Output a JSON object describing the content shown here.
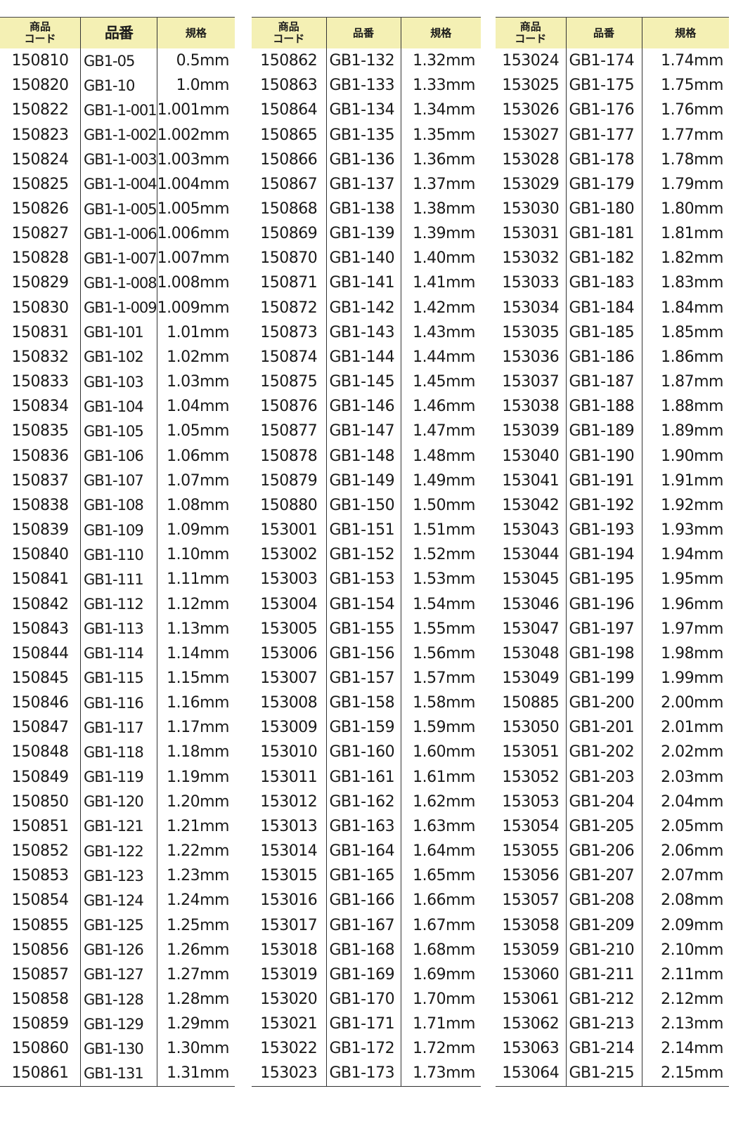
{
  "headers": {
    "code": "商品\nコード",
    "part": "品番",
    "spec": "規格"
  },
  "header_color": "#f4f0b4",
  "tables": [
    [
      [
        "150810",
        "GB1-05",
        "0.5mm"
      ],
      [
        "150820",
        "GB1-10",
        "1.0mm"
      ],
      [
        "150822",
        "GB1-1-001",
        "1.001mm"
      ],
      [
        "150823",
        "GB1-1-002",
        "1.002mm"
      ],
      [
        "150824",
        "GB1-1-003",
        "1.003mm"
      ],
      [
        "150825",
        "GB1-1-004",
        "1.004mm"
      ],
      [
        "150826",
        "GB1-1-005",
        "1.005mm"
      ],
      [
        "150827",
        "GB1-1-006",
        "1.006mm"
      ],
      [
        "150828",
        "GB1-1-007",
        "1.007mm"
      ],
      [
        "150829",
        "GB1-1-008",
        "1.008mm"
      ],
      [
        "150830",
        "GB1-1-009",
        "1.009mm"
      ],
      [
        "150831",
        "GB1-101",
        "1.01mm"
      ],
      [
        "150832",
        "GB1-102",
        "1.02mm"
      ],
      [
        "150833",
        "GB1-103",
        "1.03mm"
      ],
      [
        "150834",
        "GB1-104",
        "1.04mm"
      ],
      [
        "150835",
        "GB1-105",
        "1.05mm"
      ],
      [
        "150836",
        "GB1-106",
        "1.06mm"
      ],
      [
        "150837",
        "GB1-107",
        "1.07mm"
      ],
      [
        "150838",
        "GB1-108",
        "1.08mm"
      ],
      [
        "150839",
        "GB1-109",
        "1.09mm"
      ],
      [
        "150840",
        "GB1-110",
        "1.10mm"
      ],
      [
        "150841",
        "GB1-111",
        "1.11mm"
      ],
      [
        "150842",
        "GB1-112",
        "1.12mm"
      ],
      [
        "150843",
        "GB1-113",
        "1.13mm"
      ],
      [
        "150844",
        "GB1-114",
        "1.14mm"
      ],
      [
        "150845",
        "GB1-115",
        "1.15mm"
      ],
      [
        "150846",
        "GB1-116",
        "1.16mm"
      ],
      [
        "150847",
        "GB1-117",
        "1.17mm"
      ],
      [
        "150848",
        "GB1-118",
        "1.18mm"
      ],
      [
        "150849",
        "GB1-119",
        "1.19mm"
      ],
      [
        "150850",
        "GB1-120",
        "1.20mm"
      ],
      [
        "150851",
        "GB1-121",
        "1.21mm"
      ],
      [
        "150852",
        "GB1-122",
        "1.22mm"
      ],
      [
        "150853",
        "GB1-123",
        "1.23mm"
      ],
      [
        "150854",
        "GB1-124",
        "1.24mm"
      ],
      [
        "150855",
        "GB1-125",
        "1.25mm"
      ],
      [
        "150856",
        "GB1-126",
        "1.26mm"
      ],
      [
        "150857",
        "GB1-127",
        "1.27mm"
      ],
      [
        "150858",
        "GB1-128",
        "1.28mm"
      ],
      [
        "150859",
        "GB1-129",
        "1.29mm"
      ],
      [
        "150860",
        "GB1-130",
        "1.30mm"
      ],
      [
        "150861",
        "GB1-131",
        "1.31mm"
      ]
    ],
    [
      [
        "150862",
        "GB1-132",
        "1.32mm"
      ],
      [
        "150863",
        "GB1-133",
        "1.33mm"
      ],
      [
        "150864",
        "GB1-134",
        "1.34mm"
      ],
      [
        "150865",
        "GB1-135",
        "1.35mm"
      ],
      [
        "150866",
        "GB1-136",
        "1.36mm"
      ],
      [
        "150867",
        "GB1-137",
        "1.37mm"
      ],
      [
        "150868",
        "GB1-138",
        "1.38mm"
      ],
      [
        "150869",
        "GB1-139",
        "1.39mm"
      ],
      [
        "150870",
        "GB1-140",
        "1.40mm"
      ],
      [
        "150871",
        "GB1-141",
        "1.41mm"
      ],
      [
        "150872",
        "GB1-142",
        "1.42mm"
      ],
      [
        "150873",
        "GB1-143",
        "1.43mm"
      ],
      [
        "150874",
        "GB1-144",
        "1.44mm"
      ],
      [
        "150875",
        "GB1-145",
        "1.45mm"
      ],
      [
        "150876",
        "GB1-146",
        "1.46mm"
      ],
      [
        "150877",
        "GB1-147",
        "1.47mm"
      ],
      [
        "150878",
        "GB1-148",
        "1.48mm"
      ],
      [
        "150879",
        "GB1-149",
        "1.49mm"
      ],
      [
        "150880",
        "GB1-150",
        "1.50mm"
      ],
      [
        "153001",
        "GB1-151",
        "1.51mm"
      ],
      [
        "153002",
        "GB1-152",
        "1.52mm"
      ],
      [
        "153003",
        "GB1-153",
        "1.53mm"
      ],
      [
        "153004",
        "GB1-154",
        "1.54mm"
      ],
      [
        "153005",
        "GB1-155",
        "1.55mm"
      ],
      [
        "153006",
        "GB1-156",
        "1.56mm"
      ],
      [
        "153007",
        "GB1-157",
        "1.57mm"
      ],
      [
        "153008",
        "GB1-158",
        "1.58mm"
      ],
      [
        "153009",
        "GB1-159",
        "1.59mm"
      ],
      [
        "153010",
        "GB1-160",
        "1.60mm"
      ],
      [
        "153011",
        "GB1-161",
        "1.61mm"
      ],
      [
        "153012",
        "GB1-162",
        "1.62mm"
      ],
      [
        "153013",
        "GB1-163",
        "1.63mm"
      ],
      [
        "153014",
        "GB1-164",
        "1.64mm"
      ],
      [
        "153015",
        "GB1-165",
        "1.65mm"
      ],
      [
        "153016",
        "GB1-166",
        "1.66mm"
      ],
      [
        "153017",
        "GB1-167",
        "1.67mm"
      ],
      [
        "153018",
        "GB1-168",
        "1.68mm"
      ],
      [
        "153019",
        "GB1-169",
        "1.69mm"
      ],
      [
        "153020",
        "GB1-170",
        "1.70mm"
      ],
      [
        "153021",
        "GB1-171",
        "1.71mm"
      ],
      [
        "153022",
        "GB1-172",
        "1.72mm"
      ],
      [
        "153023",
        "GB1-173",
        "1.73mm"
      ]
    ],
    [
      [
        "153024",
        "GB1-174",
        "1.74mm"
      ],
      [
        "153025",
        "GB1-175",
        "1.75mm"
      ],
      [
        "153026",
        "GB1-176",
        "1.76mm"
      ],
      [
        "153027",
        "GB1-177",
        "1.77mm"
      ],
      [
        "153028",
        "GB1-178",
        "1.78mm"
      ],
      [
        "153029",
        "GB1-179",
        "1.79mm"
      ],
      [
        "153030",
        "GB1-180",
        "1.80mm"
      ],
      [
        "153031",
        "GB1-181",
        "1.81mm"
      ],
      [
        "153032",
        "GB1-182",
        "1.82mm"
      ],
      [
        "153033",
        "GB1-183",
        "1.83mm"
      ],
      [
        "153034",
        "GB1-184",
        "1.84mm"
      ],
      [
        "153035",
        "GB1-185",
        "1.85mm"
      ],
      [
        "153036",
        "GB1-186",
        "1.86mm"
      ],
      [
        "153037",
        "GB1-187",
        "1.87mm"
      ],
      [
        "153038",
        "GB1-188",
        "1.88mm"
      ],
      [
        "153039",
        "GB1-189",
        "1.89mm"
      ],
      [
        "153040",
        "GB1-190",
        "1.90mm"
      ],
      [
        "153041",
        "GB1-191",
        "1.91mm"
      ],
      [
        "153042",
        "GB1-192",
        "1.92mm"
      ],
      [
        "153043",
        "GB1-193",
        "1.93mm"
      ],
      [
        "153044",
        "GB1-194",
        "1.94mm"
      ],
      [
        "153045",
        "GB1-195",
        "1.95mm"
      ],
      [
        "153046",
        "GB1-196",
        "1.96mm"
      ],
      [
        "153047",
        "GB1-197",
        "1.97mm"
      ],
      [
        "153048",
        "GB1-198",
        "1.98mm"
      ],
      [
        "153049",
        "GB1-199",
        "1.99mm"
      ],
      [
        "150885",
        "GB1-200",
        "2.00mm"
      ],
      [
        "153050",
        "GB1-201",
        "2.01mm"
      ],
      [
        "153051",
        "GB1-202",
        "2.02mm"
      ],
      [
        "153052",
        "GB1-203",
        "2.03mm"
      ],
      [
        "153053",
        "GB1-204",
        "2.04mm"
      ],
      [
        "153054",
        "GB1-205",
        "2.05mm"
      ],
      [
        "153055",
        "GB1-206",
        "2.06mm"
      ],
      [
        "153056",
        "GB1-207",
        "2.07mm"
      ],
      [
        "153057",
        "GB1-208",
        "2.08mm"
      ],
      [
        "153058",
        "GB1-209",
        "2.09mm"
      ],
      [
        "153059",
        "GB1-210",
        "2.10mm"
      ],
      [
        "153060",
        "GB1-211",
        "2.11mm"
      ],
      [
        "153061",
        "GB1-212",
        "2.12mm"
      ],
      [
        "153062",
        "GB1-213",
        "2.13mm"
      ],
      [
        "153063",
        "GB1-214",
        "2.14mm"
      ],
      [
        "153064",
        "GB1-215",
        "2.15mm"
      ]
    ]
  ]
}
